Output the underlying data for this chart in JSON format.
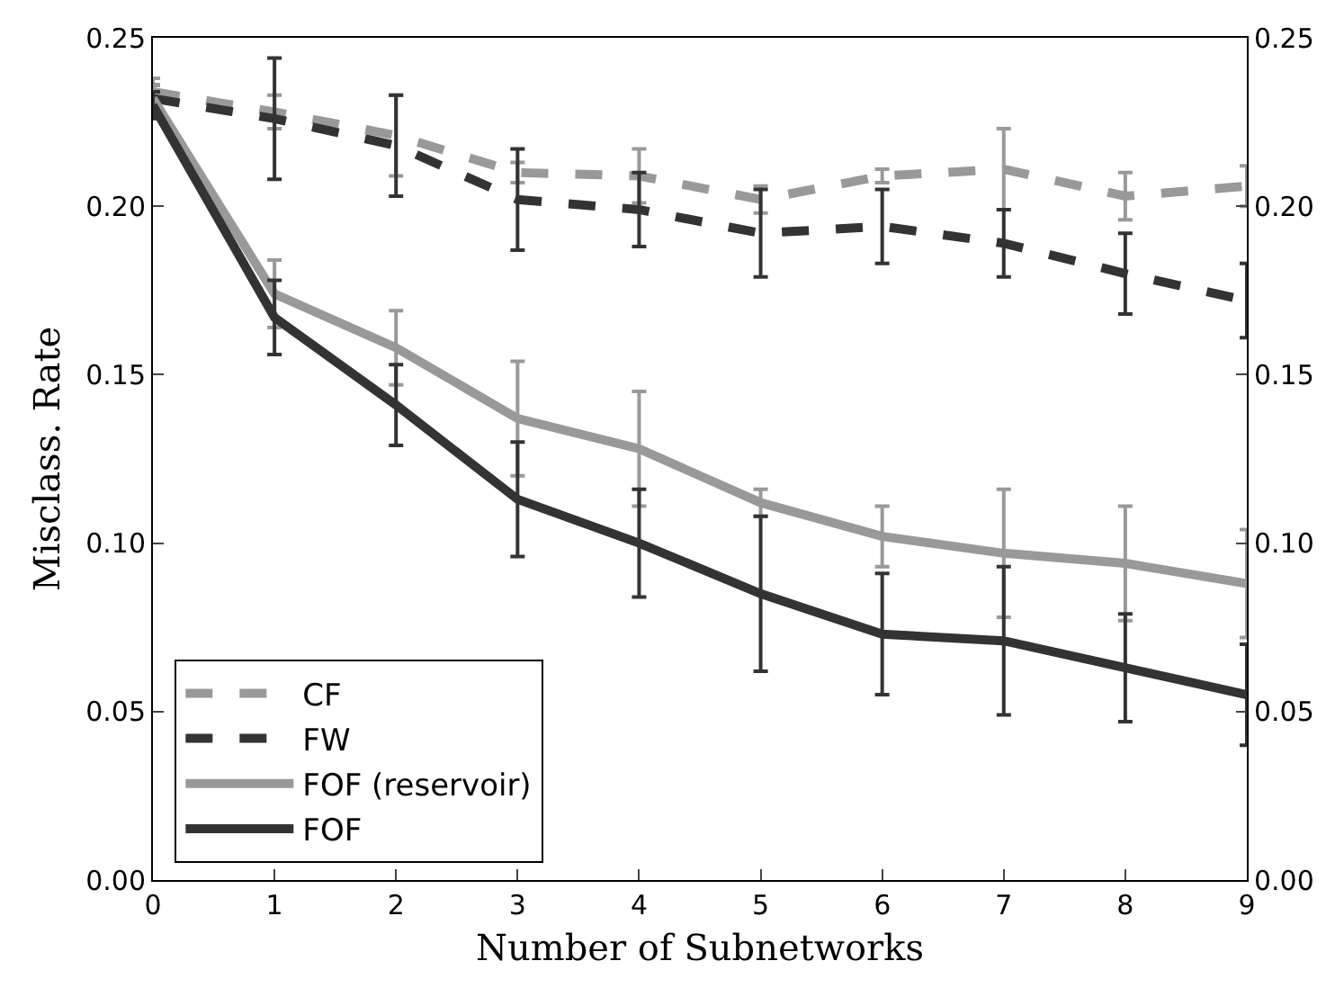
{
  "chart_data": {
    "type": "line",
    "xlabel": "Number of Subnetworks",
    "ylabel": "Misclass. Rate",
    "x": [
      0,
      1,
      2,
      3,
      4,
      5,
      6,
      7,
      8,
      9
    ],
    "series": [
      {
        "name": "CF",
        "color": "#999999",
        "line_style": "dashed",
        "values": [
          0.234,
          0.228,
          0.221,
          0.21,
          0.209,
          0.202,
          0.209,
          0.211,
          0.203,
          0.206
        ],
        "errors": [
          0.004,
          0.005,
          0.012,
          0.003,
          0.008,
          0.004,
          0.002,
          0.012,
          0.007,
          0.006
        ]
      },
      {
        "name": "FW",
        "color": "#333333",
        "line_style": "dashed",
        "values": [
          0.232,
          0.226,
          0.218,
          0.202,
          0.199,
          0.192,
          0.194,
          0.189,
          0.18,
          0.172
        ],
        "errors": [
          0.004,
          0.018,
          0.015,
          0.015,
          0.011,
          0.013,
          0.011,
          0.01,
          0.012,
          0.011
        ]
      },
      {
        "name": "FOF (reservoir)",
        "color": "#999999",
        "line_style": "solid",
        "values": [
          0.232,
          0.174,
          0.158,
          0.137,
          0.128,
          0.112,
          0.102,
          0.097,
          0.094,
          0.088
        ],
        "errors": [
          0.004,
          0.01,
          0.011,
          0.017,
          0.017,
          0.004,
          0.009,
          0.019,
          0.017,
          0.016
        ]
      },
      {
        "name": "FOF",
        "color": "#333333",
        "line_style": "solid",
        "values": [
          0.23,
          0.167,
          0.141,
          0.113,
          0.1,
          0.085,
          0.073,
          0.071,
          0.063,
          0.055
        ],
        "errors": [
          0.004,
          0.011,
          0.012,
          0.017,
          0.016,
          0.023,
          0.018,
          0.022,
          0.016,
          0.015
        ]
      }
    ],
    "xlim": [
      0,
      9
    ],
    "xticks": [
      0,
      1,
      2,
      3,
      4,
      5,
      6,
      7,
      8,
      9
    ],
    "ylim": [
      0,
      0.25
    ],
    "yticks": [
      {
        "value": 0,
        "label": "0.00"
      },
      {
        "value": 0.05,
        "label": "0.05"
      },
      {
        "value": 0.1,
        "label": "0.10"
      },
      {
        "value": 0.15,
        "label": "0.15"
      },
      {
        "value": 0.2,
        "label": "0.20"
      },
      {
        "value": 0.25,
        "label": "0.25"
      }
    ],
    "y2lim": [
      0,
      0.25
    ],
    "y2ticks": [
      {
        "value": 0,
        "label": "0.00"
      },
      {
        "value": 0.05,
        "label": "0.05"
      },
      {
        "value": 0.1,
        "label": "0.10"
      },
      {
        "value": 0.15,
        "label": "0.15"
      },
      {
        "value": 0.2,
        "label": "0.20"
      },
      {
        "value": 0.25,
        "label": "0.25"
      }
    ],
    "legend": "bottom left",
    "marker": "none"
  }
}
